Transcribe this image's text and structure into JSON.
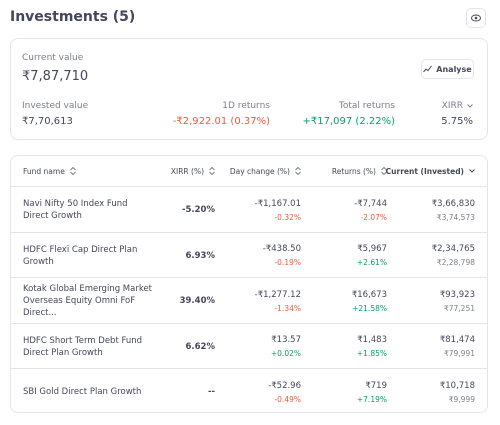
{
  "header": {
    "title": "Investments (5)"
  },
  "summary": {
    "current_label": "Current value",
    "current_value": "₹7,87,710",
    "analyse": "Analyse",
    "invested_label": "Invested value",
    "invested_value": "₹7,70,613",
    "day_label": "1D returns",
    "day_value": "-₹2,922.01 (0.37%)",
    "total_label": "Total returns",
    "total_value": "+₹17,097 (2.22%)",
    "xirr_label": "XIRR",
    "xirr_value": "5.75%"
  },
  "table": {
    "columns": [
      "Fund name",
      "XIRR (%)",
      "Day change (%)",
      "Returns (%)",
      "Current (Invested)"
    ],
    "rows": [
      [
        "Navi Nifty 50 Index Fund Direct Growth",
        "-5.20%",
        "-₹1,167.01",
        "-0.32%",
        "-₹7,744",
        "-2.07%",
        "₹3,66,830",
        "₹3,74,573"
      ],
      [
        "HDFC Flexi Cap Direct Plan Growth",
        "6.93%",
        "-₹438.50",
        "-0.19%",
        "₹5,967",
        "+2.61%",
        "₹2,34,765",
        "₹2,28,798"
      ],
      [
        "Kotak Global Emerging Market Overseas Equity Omni FoF Direct...",
        "39.40%",
        "-₹1,277.12",
        "-1.34%",
        "₹16,673",
        "+21.58%",
        "₹93,923",
        "₹77,251"
      ],
      [
        "HDFC Short Term Debt Fund Direct Plan Growth",
        "6.62%",
        "₹13.57",
        "+0.02%",
        "₹1,483",
        "+1.85%",
        "₹81,474",
        "₹79,991"
      ],
      [
        "SBI Gold Direct Plan Growth",
        "--",
        "-₹52.96",
        "-0.49%",
        "₹719",
        "+7.19%",
        "₹10,718",
        "₹9,999"
      ]
    ]
  }
}
